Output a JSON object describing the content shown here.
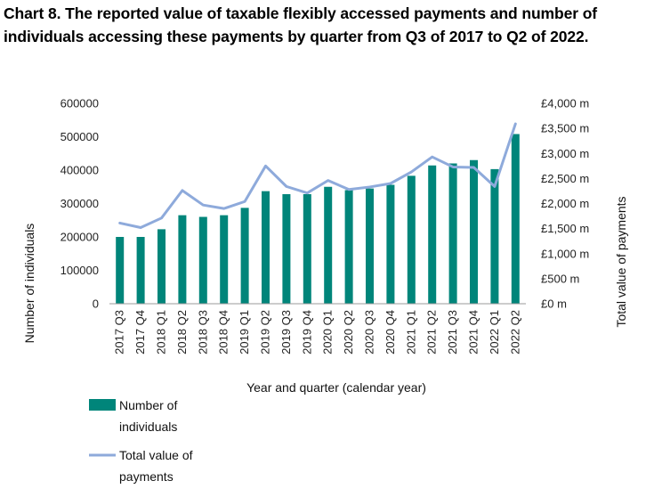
{
  "title": "Chart 8. The reported value of taxable flexibly accessed payments and number of individuals accessing these payments by quarter from Q3 of 2017 to Q2 of 2022.",
  "chart_data": {
    "type": "bar",
    "categories": [
      "2017 Q3",
      "2017 Q4",
      "2018 Q1",
      "2018 Q2",
      "2018 Q3",
      "2018 Q4",
      "2019 Q1",
      "2019 Q2",
      "2019 Q3",
      "2019 Q4",
      "2020 Q1",
      "2020 Q2",
      "2020 Q3",
      "2020 Q4",
      "2021 Q1",
      "2021 Q2",
      "2021 Q3",
      "2021 Q4",
      "2022 Q1",
      "2022 Q2"
    ],
    "xlabel": "Year and quarter (calendar year)",
    "ylabel": "Number of individuals",
    "y2label": "Total value of payments",
    "ylim": [
      0,
      600000
    ],
    "y2lim": [
      0,
      4000
    ],
    "y_ticks": [
      "0",
      "100000",
      "200000",
      "300000",
      "400000",
      "500000",
      "600000"
    ],
    "y2_ticks": [
      "£0 m",
      "£500 m",
      "£1,000 m",
      "£1,500 m",
      "£2,000 m",
      "£2,500 m",
      "£3,000 m",
      "£3,500 m",
      "£4,000 m"
    ],
    "series": [
      {
        "name": "Number of individuals",
        "type": "bar",
        "axis": "left",
        "color": "#00857a",
        "values": [
          200000,
          200000,
          223000,
          265000,
          260000,
          265000,
          287000,
          337000,
          328000,
          328000,
          350000,
          340000,
          345000,
          356000,
          383000,
          414000,
          420000,
          430000,
          403000,
          508000
        ]
      },
      {
        "name": "Total value of payments",
        "type": "line",
        "axis": "right",
        "unit": "£ m",
        "color": "#8eaadb",
        "values": [
          1610,
          1520,
          1710,
          2260,
          1970,
          1900,
          2040,
          2750,
          2340,
          2210,
          2460,
          2280,
          2330,
          2400,
          2630,
          2930,
          2730,
          2720,
          2340,
          3590
        ]
      }
    ],
    "grid": false,
    "legend_position": "bottom-left"
  }
}
